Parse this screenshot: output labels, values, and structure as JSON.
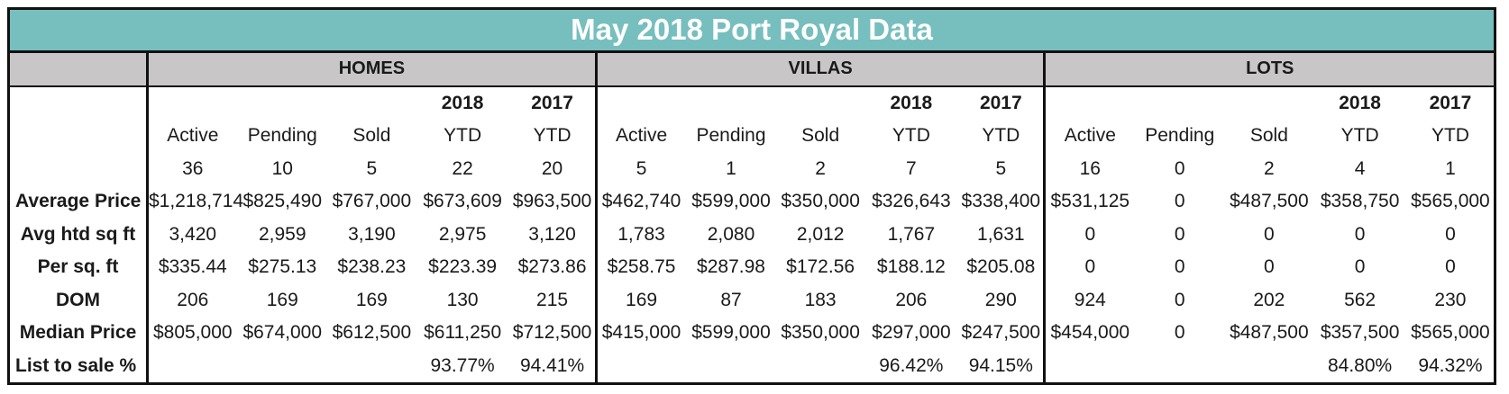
{
  "title": "May 2018 Port Royal Data",
  "groups": [
    {
      "name": "HOMES",
      "cols": [
        {
          "year": "",
          "label": "Active"
        },
        {
          "year": "",
          "label": "Pending"
        },
        {
          "year": "",
          "label": "Sold"
        },
        {
          "year": "2018",
          "label": "YTD"
        },
        {
          "year": "2017",
          "label": "YTD"
        }
      ],
      "counts": [
        "36",
        "10",
        "5",
        "22",
        "20"
      ],
      "rows": [
        [
          "$1,218,714",
          "$825,490",
          "$767,000",
          "$673,609",
          "$963,500"
        ],
        [
          "3,420",
          "2,959",
          "3,190",
          "2,975",
          "3,120"
        ],
        [
          "$335.44",
          "$275.13",
          "$238.23",
          "$223.39",
          "$273.86"
        ],
        [
          "206",
          "169",
          "169",
          "130",
          "215"
        ],
        [
          "$805,000",
          "$674,000",
          "$612,500",
          "$611,250",
          "$712,500"
        ],
        [
          "",
          "",
          "",
          "93.77%",
          "94.41%"
        ]
      ]
    },
    {
      "name": "VILLAS",
      "cols": [
        {
          "year": "",
          "label": "Active"
        },
        {
          "year": "",
          "label": "Pending"
        },
        {
          "year": "",
          "label": "Sold"
        },
        {
          "year": "2018",
          "label": "YTD"
        },
        {
          "year": "2017",
          "label": "YTD"
        }
      ],
      "counts": [
        "5",
        "1",
        "2",
        "7",
        "5"
      ],
      "rows": [
        [
          "$462,740",
          "$599,000",
          "$350,000",
          "$326,643",
          "$338,400"
        ],
        [
          "1,783",
          "2,080",
          "2,012",
          "1,767",
          "1,631"
        ],
        [
          "$258.75",
          "$287.98",
          "$172.56",
          "$188.12",
          "$205.08"
        ],
        [
          "169",
          "87",
          "183",
          "206",
          "290"
        ],
        [
          "$415,000",
          "$599,000",
          "$350,000",
          "$297,000",
          "$247,500"
        ],
        [
          "",
          "",
          "",
          "96.42%",
          "94.15%"
        ]
      ]
    },
    {
      "name": "LOTS",
      "cols": [
        {
          "year": "",
          "label": "Active"
        },
        {
          "year": "",
          "label": "Pending"
        },
        {
          "year": "",
          "label": "Sold"
        },
        {
          "year": "2018",
          "label": "YTD"
        },
        {
          "year": "2017",
          "label": "YTD"
        }
      ],
      "counts": [
        "16",
        "0",
        "2",
        "4",
        "1"
      ],
      "rows": [
        [
          "$531,125",
          "0",
          "$487,500",
          "$358,750",
          "$565,000"
        ],
        [
          "0",
          "0",
          "0",
          "0",
          "0"
        ],
        [
          "0",
          "0",
          "0",
          "0",
          "0"
        ],
        [
          "924",
          "0",
          "202",
          "562",
          "230"
        ],
        [
          "$454,000",
          "0",
          "$487,500",
          "$357,500",
          "$565,000"
        ],
        [
          "",
          "",
          "",
          "84.80%",
          "94.32%"
        ]
      ]
    }
  ],
  "row_labels": [
    "Average Price",
    "Avg htd sq ft",
    "Per sq. ft",
    "DOM",
    "Median Price",
    "List to sale %"
  ]
}
